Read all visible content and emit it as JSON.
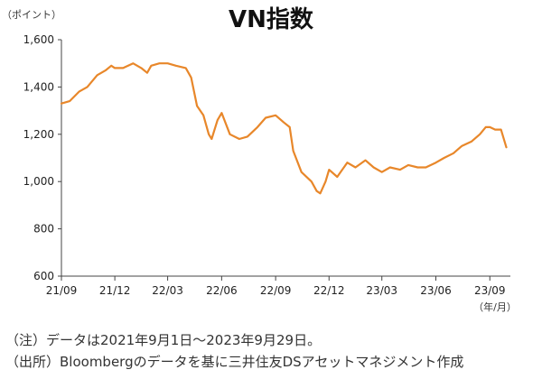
{
  "chart_data": {
    "type": "line",
    "title": "VN指数",
    "unit_label": "（ポイント）",
    "x_unit_label": "（年/月）",
    "ylim": [
      600,
      1600
    ],
    "y_ticks": [
      600,
      800,
      1000,
      1200,
      1400,
      1600
    ],
    "y_tick_labels": [
      "600",
      "800",
      "1,000",
      "1,200",
      "1,400",
      "1,600"
    ],
    "x_tick_labels": [
      "21/09",
      "21/12",
      "22/03",
      "22/06",
      "22/09",
      "22/12",
      "23/03",
      "23/06",
      "23/09"
    ],
    "grid": false,
    "line_color": "#E8872A",
    "series": [
      {
        "x": [
          "2021-09-01",
          "2021-09-15",
          "2021-10-01",
          "2021-10-15",
          "2021-11-01",
          "2021-11-15",
          "2021-11-25",
          "2021-12-01",
          "2021-12-15",
          "2022-01-01",
          "2022-01-15",
          "2022-01-25",
          "2022-02-01",
          "2022-02-15",
          "2022-03-01",
          "2022-03-15",
          "2022-04-01",
          "2022-04-10",
          "2022-04-20",
          "2022-05-01",
          "2022-05-10",
          "2022-05-15",
          "2022-05-25",
          "2022-06-01",
          "2022-06-15",
          "2022-07-01",
          "2022-07-15",
          "2022-08-01",
          "2022-08-15",
          "2022-09-01",
          "2022-09-15",
          "2022-09-25",
          "2022-10-01",
          "2022-10-15",
          "2022-11-01",
          "2022-11-10",
          "2022-11-16",
          "2022-11-25",
          "2022-12-01",
          "2022-12-15",
          "2023-01-01",
          "2023-01-15",
          "2023-02-01",
          "2023-02-15",
          "2023-03-01",
          "2023-03-15",
          "2023-04-01",
          "2023-04-15",
          "2023-05-01",
          "2023-05-15",
          "2023-06-01",
          "2023-06-15",
          "2023-07-01",
          "2023-07-15",
          "2023-08-01",
          "2023-08-15",
          "2023-08-25",
          "2023-09-01",
          "2023-09-10",
          "2023-09-20",
          "2023-09-29"
        ],
        "y": [
          1330,
          1340,
          1380,
          1400,
          1450,
          1470,
          1490,
          1480,
          1480,
          1500,
          1480,
          1460,
          1490,
          1500,
          1500,
          1490,
          1480,
          1440,
          1320,
          1280,
          1200,
          1180,
          1260,
          1290,
          1200,
          1180,
          1190,
          1230,
          1270,
          1280,
          1250,
          1230,
          1130,
          1040,
          1000,
          960,
          950,
          1000,
          1050,
          1020,
          1080,
          1060,
          1090,
          1060,
          1040,
          1060,
          1050,
          1070,
          1060,
          1060,
          1080,
          1100,
          1120,
          1150,
          1170,
          1200,
          1230,
          1230,
          1220,
          1220,
          1145
        ]
      }
    ]
  },
  "notes": {
    "line1": "（注）データは2021年9月1日～2023年9月29日。",
    "line2": "（出所）Bloombergのデータを基に三井住友DSアセットマネジメント作成"
  }
}
